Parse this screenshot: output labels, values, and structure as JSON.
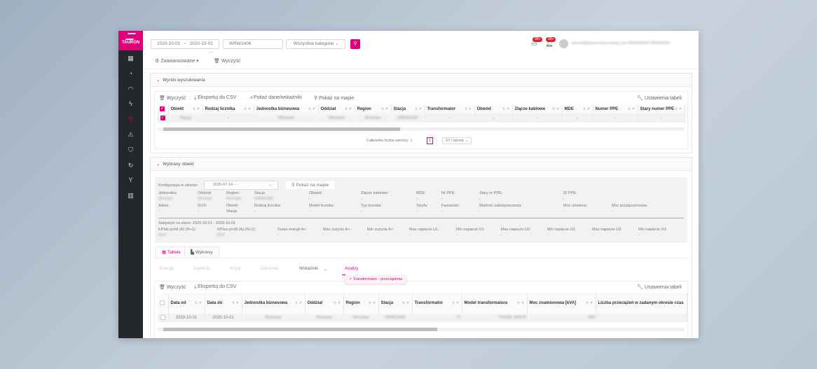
{
  "brand": {
    "name": "TAURON",
    "sub": "DYSTRYBUCJA",
    "accent": "#e2007a"
  },
  "sidebar": {
    "items": [
      {
        "icon": "dashboard-icon",
        "glyph": "▦"
      },
      {
        "icon": "meter-icon",
        "glyph": "◔"
      },
      {
        "icon": "gauge-icon",
        "glyph": "◠"
      },
      {
        "icon": "lightning-icon",
        "glyph": "ϟ"
      },
      {
        "icon": "map-pin-icon",
        "glyph": "⚲",
        "active": true
      },
      {
        "icon": "warning-icon",
        "glyph": "⚠"
      },
      {
        "icon": "shield-icon",
        "glyph": "⛉"
      },
      {
        "icon": "refresh-icon",
        "glyph": "↻"
      },
      {
        "icon": "branch-icon",
        "glyph": "Y"
      },
      {
        "icon": "map-icon",
        "glyph": "▥"
      }
    ]
  },
  "search": {
    "date_from": "2020-10-01",
    "date_sep": "~",
    "date_to": "2020-10-01",
    "query": "WRW2406",
    "category": "Wszystkie kategorie",
    "advanced": "Zaawansowane",
    "clear": "Wyczyść"
  },
  "header": {
    "messages_badge": "99+",
    "notifications_badge": "99+",
    "user": "blurred@tauron-processing.com 0000000000 000000000"
  },
  "results": {
    "title": "Wyniki wyszukiwania",
    "toolbar": {
      "clear": "Wyczyść",
      "export": "Eksportuj do CSV",
      "show_data": "Pokaż dane/wskaźniki",
      "show_map": "Pokaż na mapie",
      "settings": "Ustawienia tabeli"
    },
    "columns": [
      "Obiekt",
      "Rodzaj licznika",
      "Jednostka biznesowa",
      "Oddział",
      "Region",
      "Stacja",
      "Transformator",
      "Obwód",
      "Złącze kablowe",
      "MDE",
      "Numer PPE",
      "Stary numer PPE"
    ],
    "rows": [
      [
        "Stacja",
        "-",
        "Wrocław",
        "Wrocław",
        "Wrocław",
        "WRW2406",
        "-",
        "-",
        "-",
        "-",
        "-",
        "-"
      ]
    ],
    "total_label": "Całkowita liczba wierszy: 1",
    "page": "1",
    "page_size": "10 / stronę"
  },
  "object": {
    "title": "Wybrany obiekt",
    "config_label": "Konfiguracja w okresie:",
    "config_value": "2020-07-14 - -",
    "show_map": "Pokaż na mapie",
    "fields_row1": [
      {
        "l": "Jednostka:",
        "v": "Wrocław",
        "b": 1
      },
      {
        "l": "Oddział:",
        "v": "Wrocław",
        "b": 1
      },
      {
        "l": "Region:",
        "v": "Wrocław",
        "b": 1
      },
      {
        "l": "Stacja",
        "v": "WRW2406",
        "b": 1
      },
      {
        "l": "Obwód:",
        "v": "-"
      },
      {
        "l": "Złącze kablowe:",
        "v": "-"
      },
      {
        "l": "MDE:",
        "v": "-"
      },
      {
        "l": "Nr PPE:",
        "v": "-"
      },
      {
        "l": "Stary nr PPE:",
        "v": "-"
      },
      {
        "l": "ID PPE:",
        "v": "-"
      }
    ],
    "fields_row2": [
      {
        "l": "Adres:",
        "v": "-"
      },
      {
        "l": "GUS:",
        "v": "-"
      },
      {
        "l": "Obiekt:",
        "v": "Stacja"
      },
      {
        "l": "Rodzaj licznika:",
        "v": "-"
      },
      {
        "l": "Model licznika:",
        "v": "-"
      },
      {
        "l": "Typ licznika:",
        "v": "-"
      },
      {
        "l": "Taryfa:",
        "v": "-"
      },
      {
        "l": "Fazowość:",
        "v": "-"
      },
      {
        "l": "Wartość zabezpieczenia:",
        "v": "-"
      },
      {
        "l": "Moc umowna:",
        "v": "-"
      },
      {
        "l": "Moc przyłączeniowa:",
        "v": "-"
      }
    ],
    "stats_title": "Statystyki za okres: 2020-10-01 - 2020-10-01",
    "stats": [
      {
        "l": "KPIds profil (A) (N+1):",
        "v": "00.0",
        "b": 1
      },
      {
        "l": "KPIws profil (A) (N+1):",
        "v": "00.0",
        "b": 1
      },
      {
        "l": "Suma energii A+:",
        "v": "-"
      },
      {
        "l": "Max zużycie A+:",
        "v": "-"
      },
      {
        "l": "Min zużycie A+:",
        "v": "-"
      },
      {
        "l": "Max napięcie U1:",
        "v": "-"
      },
      {
        "l": "Min napięcie U1:",
        "v": "-"
      },
      {
        "l": "Max napięcie U2:",
        "v": "-"
      },
      {
        "l": "Min napięcie U2:",
        "v": "-"
      },
      {
        "l": "Max napięcie U3:",
        "v": "-"
      },
      {
        "l": "Min napięcie U3:",
        "v": "-"
      }
    ]
  },
  "view_tabs": [
    "Tabele",
    "Wykresy"
  ],
  "sub_tabs": [
    "Energie",
    "Napięcia",
    "Prądy",
    "Zdarzenia",
    "Wskaźniki",
    "Analizy"
  ],
  "analysis_menu": {
    "selected": "Transformator - przeciążenia"
  },
  "analysis_table": {
    "toolbar": {
      "clear": "Wyczyść",
      "export": "Eksportuj do CSV",
      "settings": "Ustawienia tabeli"
    },
    "columns": [
      "Data od",
      "Data do",
      "Jednostka biznesowa",
      "Oddział",
      "Region",
      "Stacja",
      "Transformator",
      "Model transformatora",
      "Moc znamionowa [kVA]",
      "Liczba przeciążeń w zadanym okresie czas"
    ],
    "rows": [
      [
        "2020-10-01",
        "2020-10-01",
        "Wrocław",
        "Wrocław",
        "Wrocław",
        "WRW2406",
        "T1",
        "TNOSE 400/20",
        "400",
        ""
      ]
    ]
  }
}
